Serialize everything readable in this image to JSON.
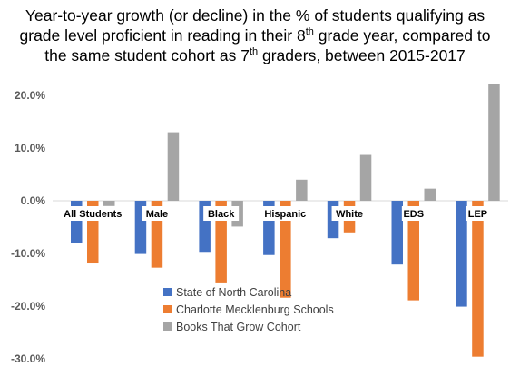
{
  "chart_data": {
    "type": "bar",
    "title_parts": {
      "line1": "Year-to-year growth (or decline) in the % of students qualifying as",
      "line2_before": "grade level proficient in reading in their 8",
      "line2_sup": "th",
      "line2_after": " grade year, compared to",
      "line3_before": "the same student cohort as 7",
      "line3_sup": "th",
      "line3_after": " graders, between 2015-2017"
    },
    "categories": [
      "All Students",
      "Male",
      "Black",
      "Hispanic",
      "White",
      "EDS",
      "LEP"
    ],
    "series": [
      {
        "name": "State of North Carolina",
        "color": "#4472C4",
        "values": [
          -8.0,
          -10.1,
          -9.7,
          -10.3,
          -7.1,
          -12.1,
          -20.1
        ]
      },
      {
        "name": "Charlotte Mecklenburg Schools",
        "color": "#ED7D31",
        "values": [
          -11.9,
          -12.7,
          -15.5,
          -18.4,
          -6.0,
          -18.9,
          -29.6
        ]
      },
      {
        "name": "Books That Grow Cohort",
        "color": "#A5A5A5",
        "values": [
          -1.0,
          13.0,
          -4.9,
          4.0,
          8.7,
          2.3,
          22.2
        ]
      }
    ],
    "yticks": [
      20,
      10,
      0,
      -10,
      -20,
      -30
    ],
    "ytick_labels": [
      "20.0%",
      "10.0%",
      "0.0%",
      "-10.0%",
      "-20.0%",
      "-30.0%"
    ],
    "ylim": [
      -30,
      22.5
    ],
    "xlabel": "",
    "ylabel": "",
    "grid": false,
    "legend_position": "bottom-left"
  }
}
